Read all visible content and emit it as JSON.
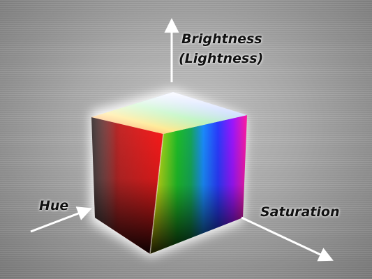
{
  "labels": {
    "brightness": "Brightness",
    "lightness": "(Lightness)",
    "hue": "Hue",
    "saturation": "Saturation"
  },
  "colors": {
    "hues": [
      "#ff2a2a",
      "#ff3a1a",
      "#ffe100",
      "#26c11a",
      "#1aa83c",
      "#1a76ff",
      "#2b3bff",
      "#b400ff",
      "#ff1a9e",
      "#ff2a2a"
    ],
    "top_light": "#ffffff",
    "axis_arrow": "#ffffff"
  }
}
